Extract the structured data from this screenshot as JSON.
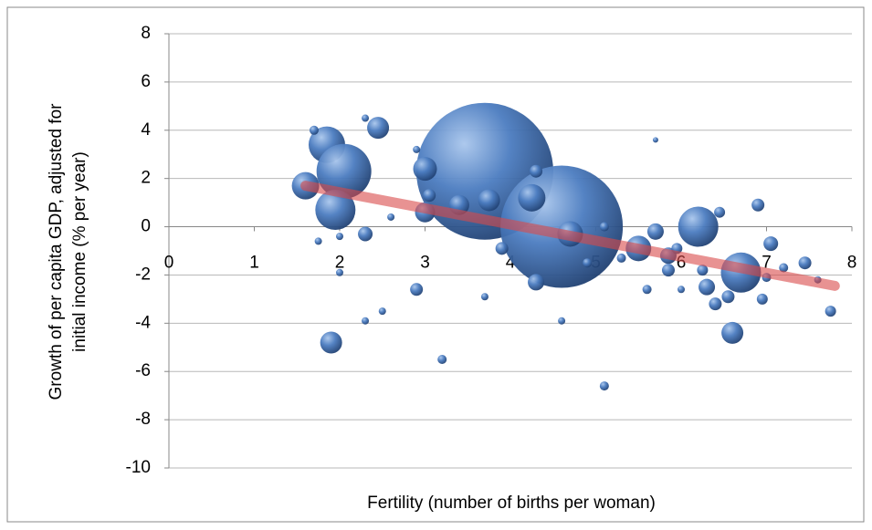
{
  "chart_data": {
    "type": "bubble",
    "x_label": "Fertility (number of births per woman)",
    "y_label": [
      "Growth of per capita GDP, adjusted for",
      "initial income (% per year)"
    ],
    "x": [
      3.7,
      4.6,
      1.85,
      2.05,
      1.6,
      1.95,
      6.2,
      6.7,
      1.9,
      6.6,
      4.25,
      3.0,
      2.45,
      4.7,
      5.5,
      4.3,
      3.0,
      3.4,
      3.75,
      5.7,
      5.85,
      6.3,
      6.4,
      6.55,
      7.05,
      7.45,
      6.9,
      6.45,
      2.3,
      2.9,
      3.2,
      5.1,
      7.75,
      6.95,
      5.85,
      6.25,
      4.3,
      3.05,
      2.3,
      1.7,
      2.3,
      2.5,
      4.6,
      3.7,
      5.6,
      7.0,
      7.2,
      5.7,
      1.75,
      2.0,
      2.0,
      5.1,
      4.9,
      5.95,
      6.0,
      7.6,
      2.9,
      2.6,
      3.9,
      5.3
    ],
    "values": [
      2.3,
      0.0,
      3.4,
      2.3,
      1.7,
      0.7,
      0.0,
      -1.9,
      -4.8,
      -4.4,
      1.2,
      2.4,
      4.1,
      -0.3,
      -0.9,
      -2.3,
      0.6,
      0.9,
      1.1,
      -0.2,
      -1.2,
      -2.5,
      -3.2,
      -2.9,
      -0.7,
      -1.5,
      0.9,
      0.6,
      -0.3,
      -2.6,
      -5.5,
      -6.6,
      -3.5,
      -3.0,
      -1.8,
      -1.8,
      2.3,
      1.3,
      4.5,
      4.0,
      -3.9,
      -3.5,
      -3.9,
      -2.9,
      -2.6,
      -2.1,
      -1.7,
      3.6,
      -0.6,
      -1.9,
      -0.4,
      0.0,
      -1.5,
      -0.9,
      -2.6,
      -2.2,
      3.2,
      0.4,
      -0.9,
      -1.3
    ],
    "sizes": [
      5625,
      4489,
      400,
      900,
      225,
      484,
      484,
      484,
      144,
      144,
      225,
      169,
      144,
      196,
      196,
      81,
      121,
      121,
      144,
      81,
      81,
      81,
      49,
      49,
      64,
      49,
      49,
      36,
      64,
      49,
      25,
      25,
      36,
      36,
      49,
      36,
      49,
      49,
      16,
      25,
      16,
      16,
      16,
      16,
      25,
      25,
      25,
      9,
      16,
      16,
      16,
      25,
      25,
      36,
      16,
      16,
      16,
      16,
      49,
      25
    ],
    "color": "#3f6fb0",
    "trendline": {
      "x": [
        1.6,
        7.8
      ],
      "values": [
        1.7,
        -2.45
      ],
      "color": "#d94a4a"
    },
    "xlim": [
      0,
      8
    ],
    "xticks": [
      0,
      1,
      2,
      3,
      4,
      5,
      6,
      7,
      8
    ],
    "ylim": [
      -10,
      8
    ],
    "yticks": [
      -10,
      -8,
      -6,
      -4,
      -2,
      0,
      2,
      4,
      6,
      8
    ],
    "grid": true
  }
}
